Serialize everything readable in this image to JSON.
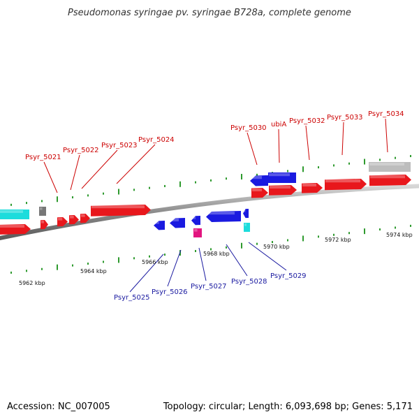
{
  "title": "Pseudomonas syringae pv. syringae B728a, complete genome",
  "footer": {
    "accession": "Accession: NC_007005",
    "topology": "Topology: circular; Length: 6,093,698 bp; Genes: 5,171"
  },
  "colors": {
    "forward_gene": "#e8171c",
    "reverse_gene": "#1a1ae0",
    "rna_gene": "#1cdcdc",
    "pseudo_gene": "#777777",
    "other_gene": "#e2157f",
    "hypothetical": "#bdbdbd",
    "backbone": "#888888",
    "tick": "#2e9a2e",
    "label_top": "#cc0000",
    "label_bottom": "#1a1aa0"
  },
  "scale_labels": [
    "5962 kbp",
    "5964 kbp",
    "5966 kbp",
    "5968 kbp",
    "5970 kbp",
    "5972 kbp",
    "5974 kbp"
  ],
  "gene_labels_top": [
    "Psyr_5021",
    "Psyr_5022",
    "Psyr_5023",
    "Psyr_5024",
    "Psyr_5030",
    "ubiA",
    "Psyr_5032",
    "Psyr_5033",
    "Psyr_5034"
  ],
  "gene_labels_bottom": [
    "Psyr_5025",
    "Psyr_5026",
    "Psyr_5027",
    "Psyr_5028",
    "Psyr_5029"
  ]
}
